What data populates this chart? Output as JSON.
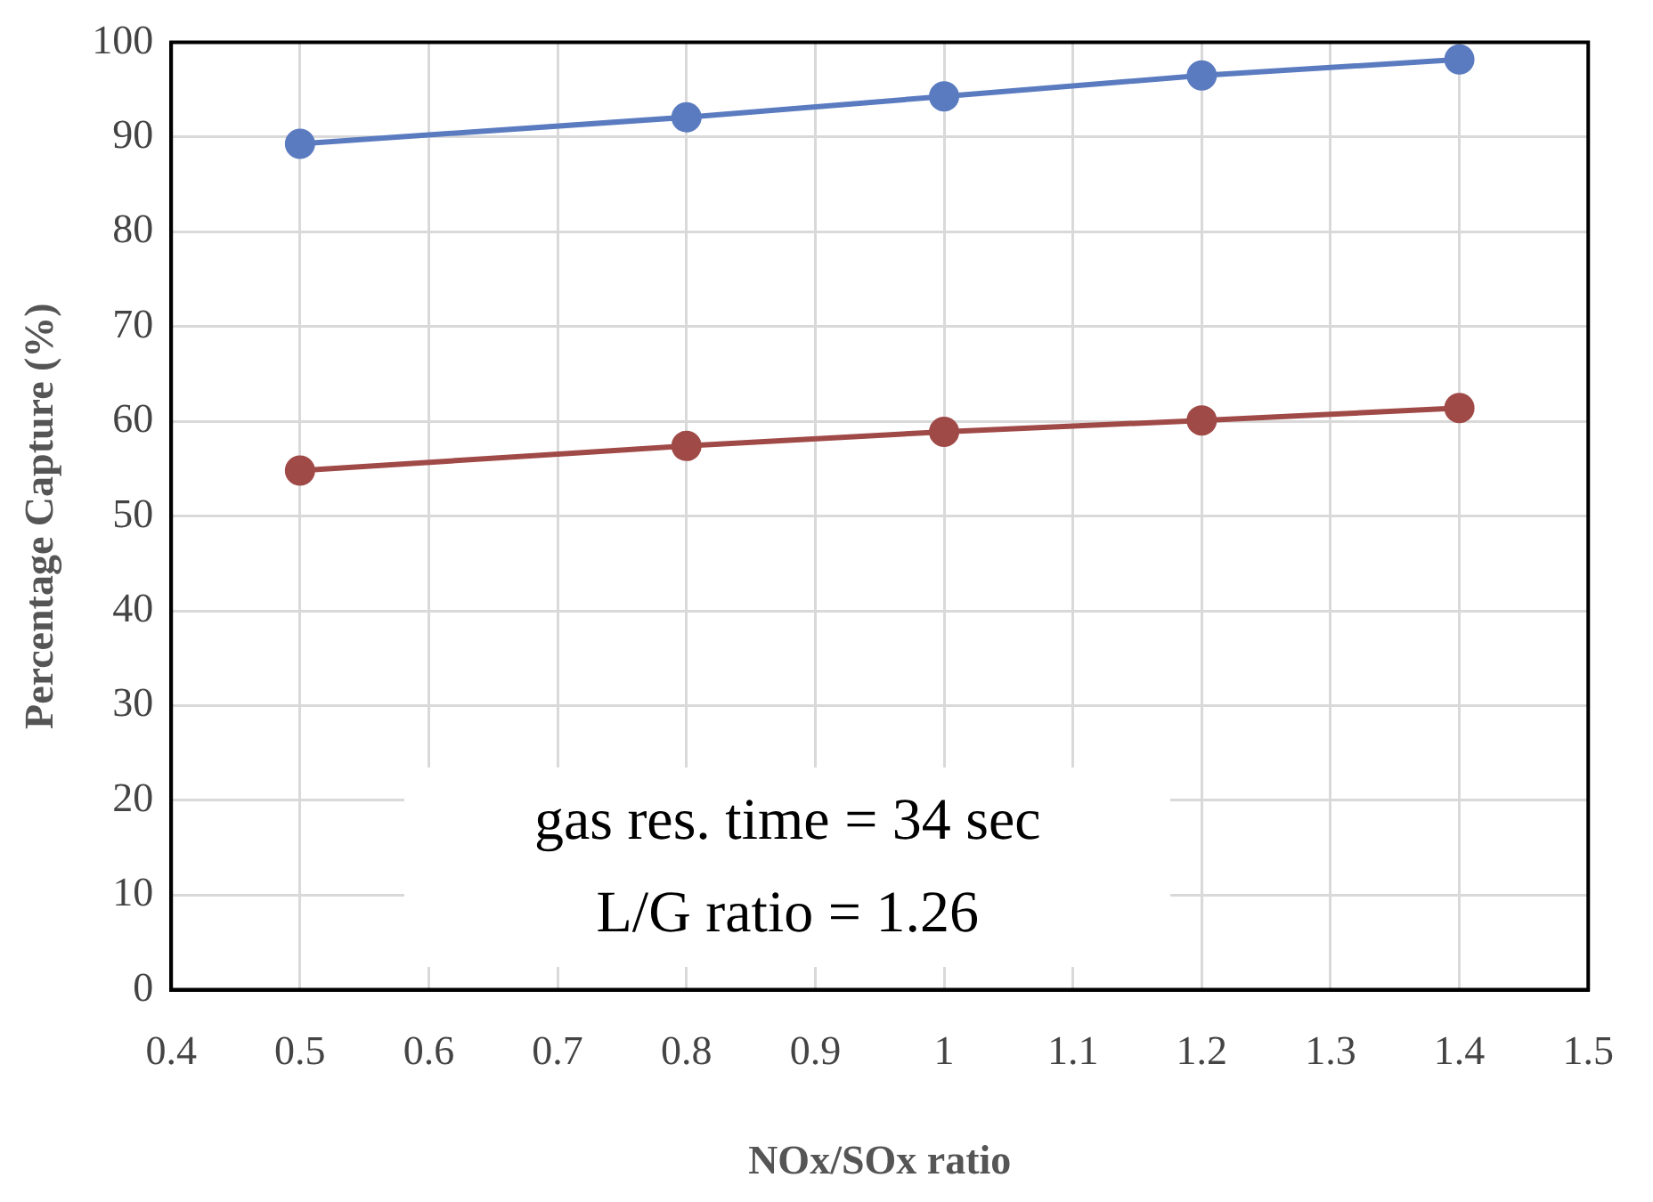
{
  "chart_data": {
    "type": "line",
    "xlabel": "NOx/SOx ratio",
    "ylabel": "Percentage Capture (%)",
    "x": [
      0.5,
      0.8,
      1,
      1.2,
      1.4
    ],
    "series": [
      {
        "color": "#5b7bc0",
        "values": [
          89.3,
          92.1,
          94.3,
          96.5,
          98.2
        ]
      },
      {
        "color": "#a04a48",
        "values": [
          54.8,
          57.4,
          58.9,
          60.1,
          61.4
        ]
      }
    ],
    "xlim": [
      0.4,
      1.5
    ],
    "xticks": [
      0.4,
      0.5,
      0.6,
      0.7,
      0.8,
      0.9,
      1,
      1.1,
      1.2,
      1.3,
      1.4,
      1.5
    ],
    "ylim": [
      0,
      100
    ],
    "yticks": [
      0,
      10,
      20,
      30,
      40,
      50,
      60,
      70,
      80,
      90,
      100
    ],
    "grid": true,
    "marker": "circle",
    "line_style": "solid",
    "annotations": [
      "gas res. time = 34 sec",
      "L/G ratio = 1.26"
    ]
  }
}
